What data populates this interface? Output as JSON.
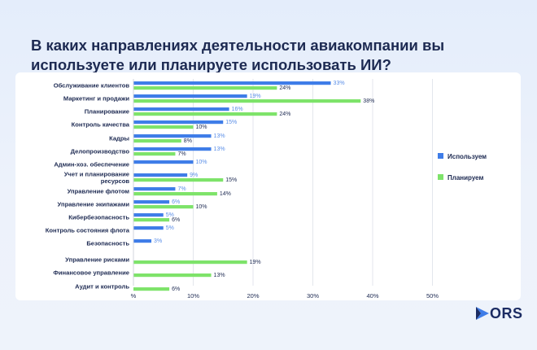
{
  "title": "В каких направлениях деятельности авиакомпании вы используете или планируете использовать ИИ?",
  "logo": {
    "text": "ORS"
  },
  "colors": {
    "use": "#3f7de8",
    "plan": "#7ee36a",
    "text": "#1d2a52",
    "blue_label": "#5b8fe8"
  },
  "chart_data": {
    "type": "bar",
    "orientation": "horizontal",
    "categories": [
      "Обслуживание клиентов",
      "Маркетинг и продажи",
      "Планирование",
      "Контроль качества",
      "Кадры",
      "Делопроизводство",
      "Админ-хоз. обеспечение",
      "Учет и планирование ресурсов",
      "Управление флотом",
      "Управление экипажами",
      "Кибербезопасность",
      "Контроль состояния флота",
      "Безопасность",
      "Управление рисками",
      "Финансовое управление",
      "Аудит и контроль"
    ],
    "series": [
      {
        "name": "Используем",
        "values": [
          33,
          19,
          16,
          15,
          13,
          13,
          10,
          9,
          7,
          6,
          5,
          5,
          3,
          null,
          null,
          null
        ]
      },
      {
        "name": "Планируем",
        "values": [
          24,
          38,
          24,
          10,
          8,
          7,
          null,
          15,
          14,
          10,
          6,
          null,
          null,
          19,
          13,
          6
        ]
      }
    ],
    "value_suffix": "%",
    "xlim": [
      0,
      50
    ],
    "xticks": [
      "%",
      "10%",
      "20%",
      "30%",
      "40%",
      "50%"
    ],
    "grid": true,
    "legend": "right"
  }
}
